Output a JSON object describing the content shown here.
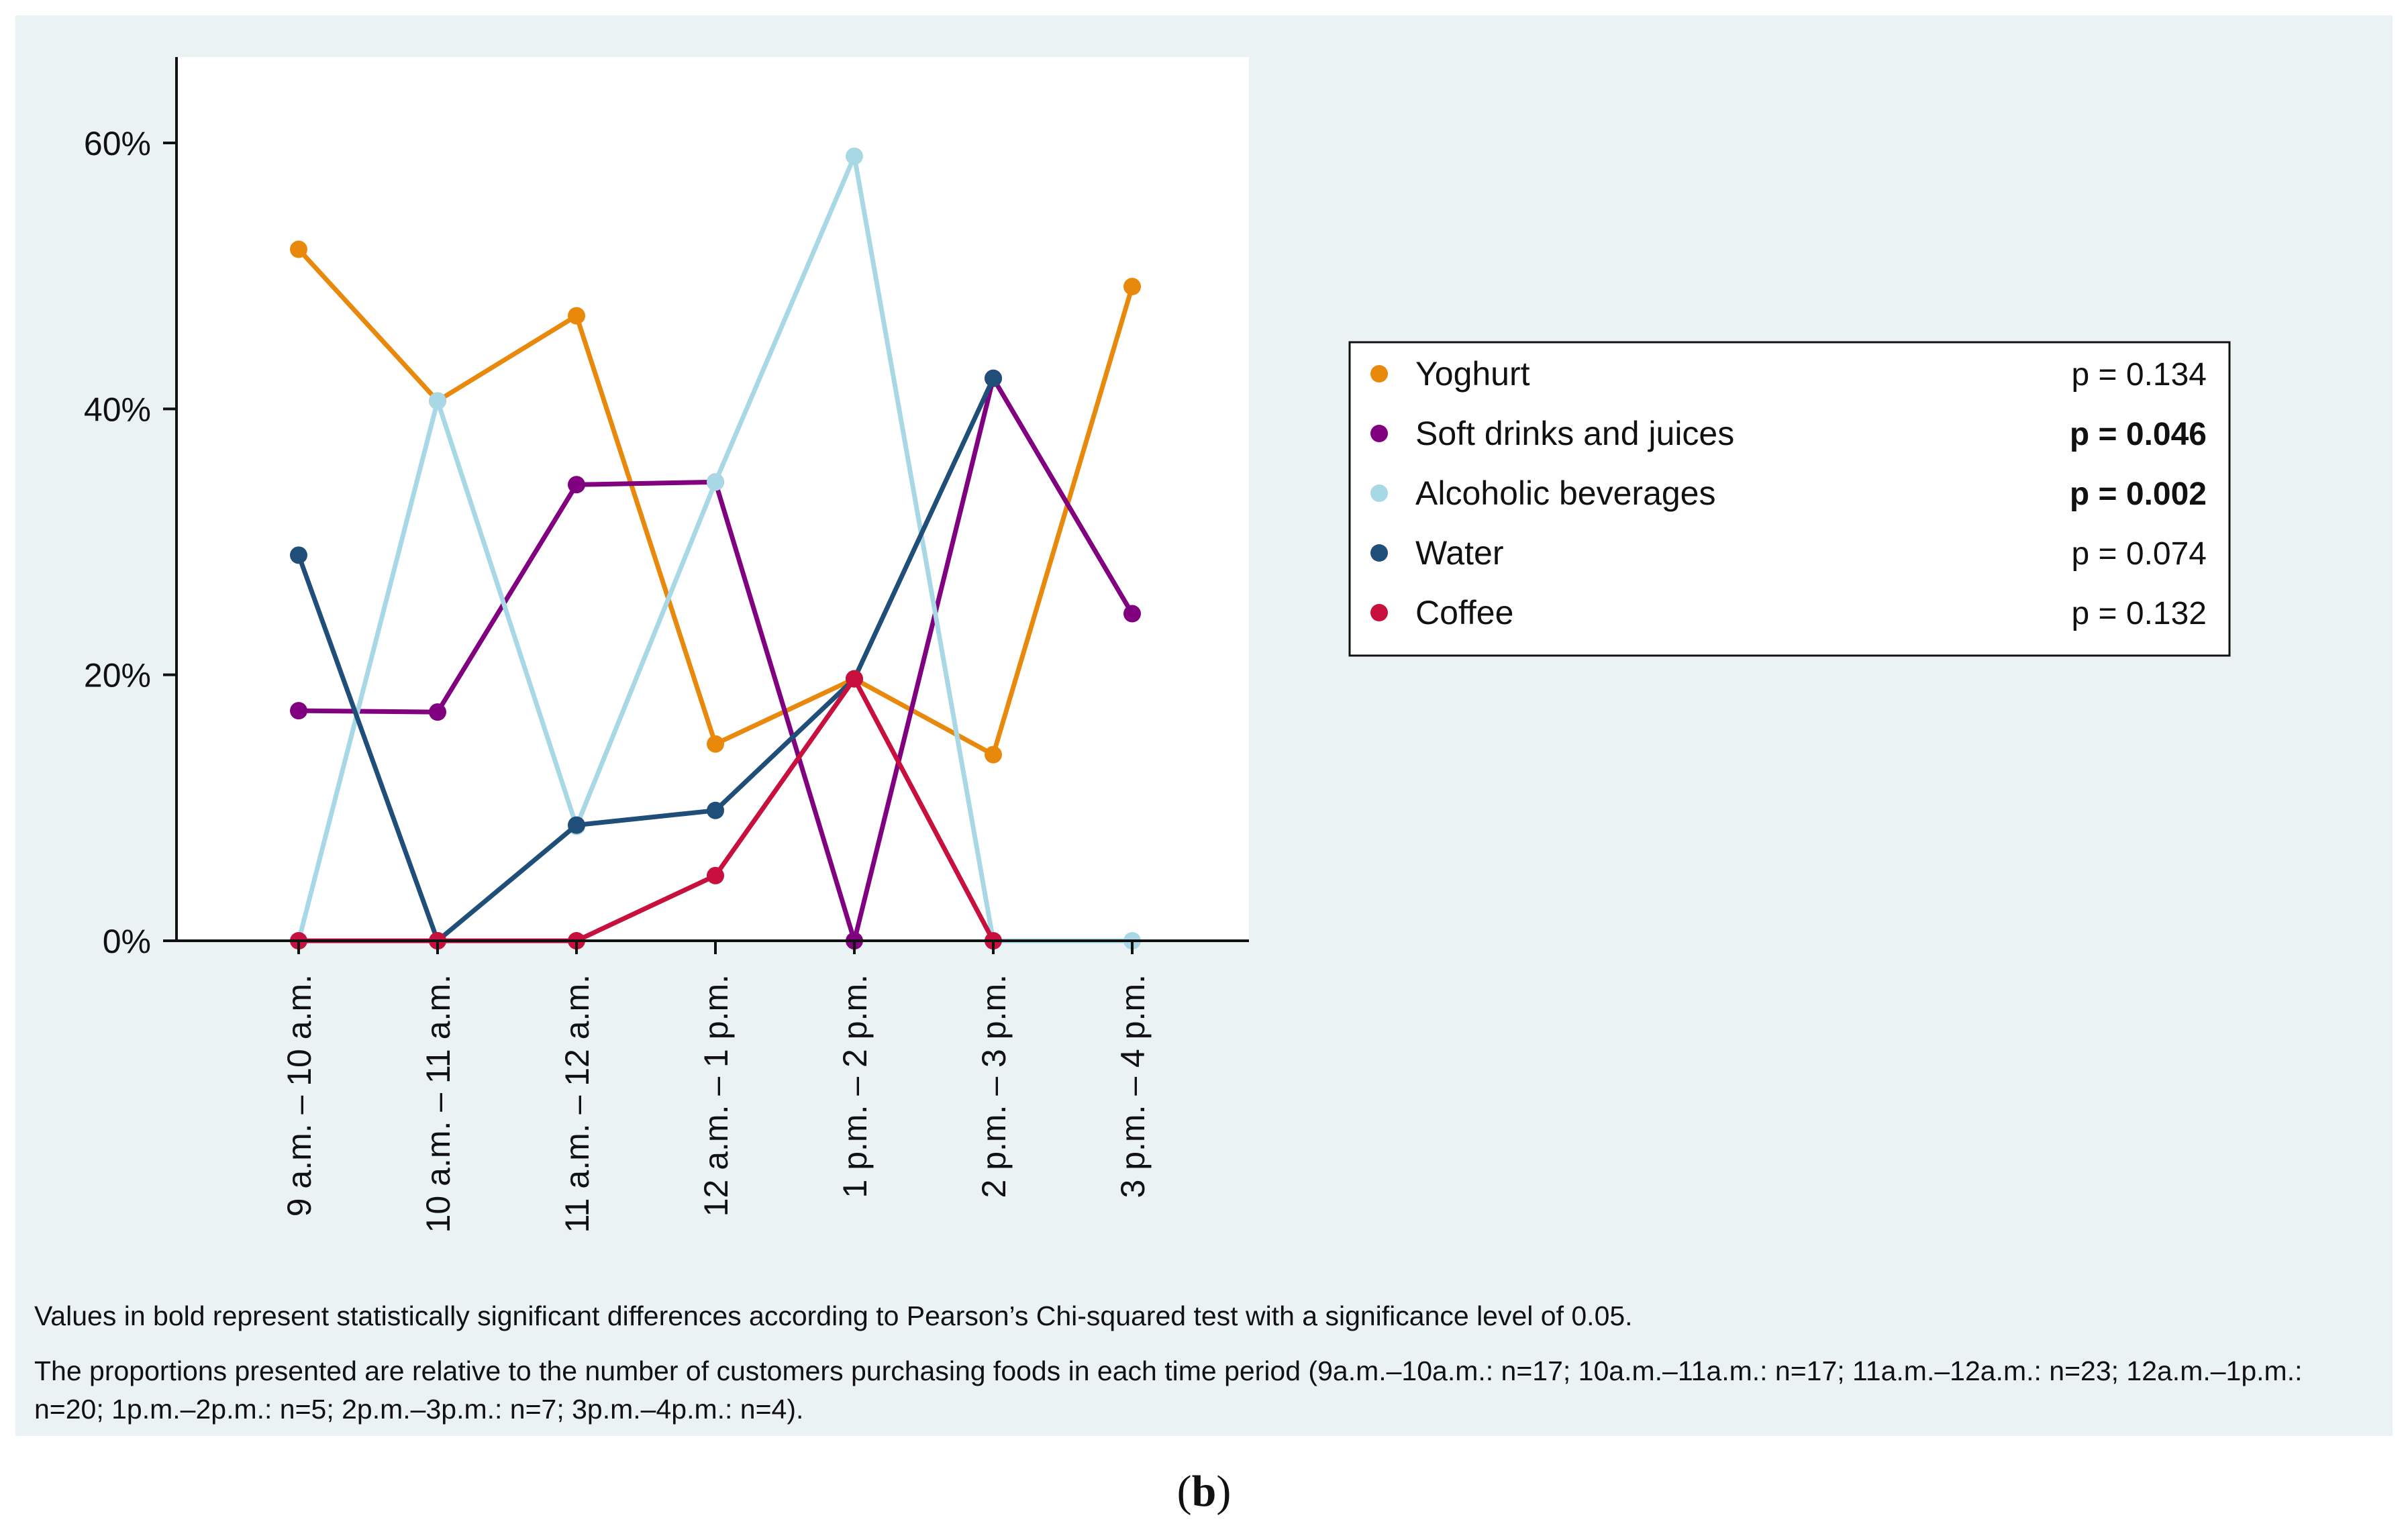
{
  "chart_data": {
    "type": "line",
    "categories": [
      "9 a.m. – 10 a.m.",
      "10 a.m. – 11 a.m.",
      "11 a.m. – 12 a.m.",
      "12 a.m. – 1 p.m.",
      "1 p.m. – 2 p.m.",
      "2 p.m. – 3 p.m.",
      "3 p.m. – 4 p.m."
    ],
    "ylim": [
      0,
      65
    ],
    "yticks": [
      {
        "value": 0,
        "label": "0%"
      },
      {
        "value": 20,
        "label": "20%"
      },
      {
        "value": 40,
        "label": "40%"
      },
      {
        "value": 60,
        "label": "60%"
      }
    ],
    "grid": false,
    "legend_position": "right",
    "series": [
      {
        "name": "Yoghurt",
        "p_label": "p = 0.134",
        "significant": false,
        "color": "#e8890c",
        "values": [
          52.0,
          40.6,
          47.0,
          14.8,
          19.7,
          14.0,
          49.2
        ]
      },
      {
        "name": "Soft drinks and juices",
        "p_label": "p = 0.046",
        "significant": true,
        "color": "#800080",
        "values": [
          17.3,
          17.2,
          34.3,
          34.5,
          0.0,
          42.3,
          24.6
        ]
      },
      {
        "name": "Alcoholic beverages",
        "p_label": "p = 0.002",
        "significant": true,
        "color": "#a8d8e6",
        "values": [
          0.0,
          40.6,
          8.6,
          34.5,
          59.0,
          0.0,
          0.0
        ]
      },
      {
        "name": "Water",
        "p_label": "p = 0.074",
        "significant": false,
        "color": "#1f4e79",
        "values": [
          29.0,
          0.0,
          8.7,
          9.8,
          19.7,
          42.3,
          null
        ]
      },
      {
        "name": "Coffee",
        "p_label": "p = 0.132",
        "significant": false,
        "color": "#c8103e",
        "values": [
          0.0,
          0.0,
          0.0,
          4.9,
          19.7,
          0.0,
          null
        ]
      }
    ]
  },
  "notes": {
    "significance": "Values in bold represent statistically significant differences according to Pearson’s Chi-squared test with a significance level of 0.05.",
    "proportions": "The proportions presented are relative to the number of customers purchasing foods in each time period (9a.m.–10a.m.: n=17; 10a.m.–11a.m.: n=17; 11a.m.–12a.m.: n=23; 12a.m.–1p.m.: n=20; 1p.m.–2p.m.: n=5; 2p.m.–3p.m.: n=7; 3p.m.–4p.m.: n=4)."
  },
  "panel_label": {
    "open": "(",
    "letter": "b",
    "close": ")"
  }
}
